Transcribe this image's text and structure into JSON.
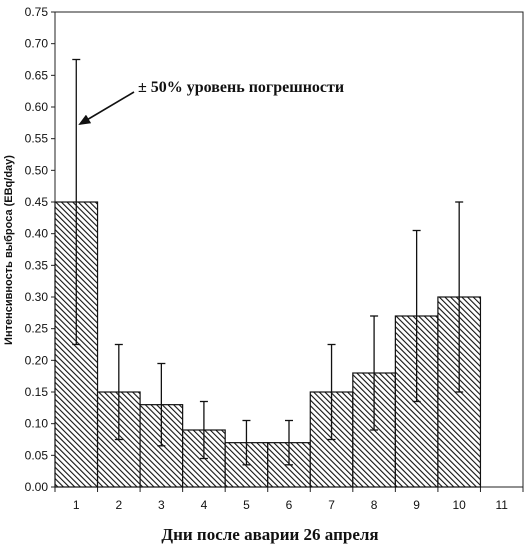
{
  "chart_data": {
    "type": "bar",
    "categories": [
      "1",
      "2",
      "3",
      "4",
      "5",
      "6",
      "7",
      "8",
      "9",
      "10",
      "11"
    ],
    "values": [
      0.45,
      0.15,
      0.13,
      0.09,
      0.07,
      0.07,
      0.15,
      0.18,
      0.27,
      0.3,
      null
    ],
    "error_low": [
      0.225,
      0.075,
      0.065,
      0.045,
      0.035,
      0.035,
      0.075,
      0.09,
      0.135,
      0.15,
      null
    ],
    "error_high": [
      0.675,
      0.225,
      0.195,
      0.135,
      0.105,
      0.105,
      0.225,
      0.27,
      0.405,
      0.45,
      null
    ],
    "ylim": [
      0,
      0.75
    ],
    "yticks": [
      "0.00",
      "0.05",
      "0.10",
      "0.15",
      "0.20",
      "0.25",
      "0.30",
      "0.35",
      "0.40",
      "0.45",
      "0.50",
      "0.55",
      "0.60",
      "0.65",
      "0.70",
      "0.75"
    ],
    "xlabel": "Дни после аварии 26 апреля",
    "ylabel": "Интенсивность выброса (EBq/day)",
    "annotation": "± 50% уровень погрешности",
    "grid": false,
    "bar_fill": "hatched",
    "colors": {
      "bar_hatch": "#111111",
      "bar_background": "#ffffff",
      "axis": "#222222"
    }
  }
}
